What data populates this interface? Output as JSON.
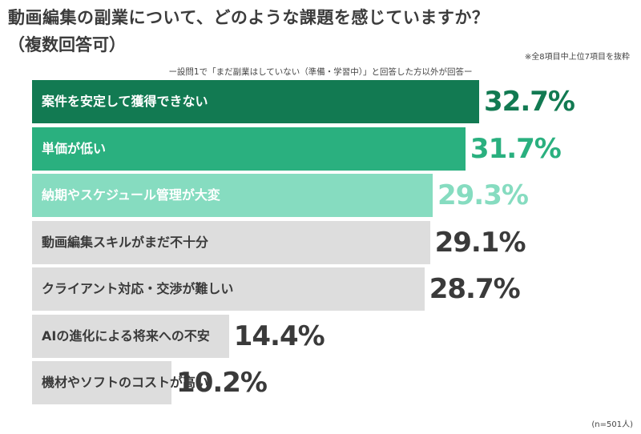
{
  "title_line1": "動画編集の副業について、どのような課題を感じていますか？",
  "title_line2": "（複数回答可）",
  "note": "※全8項目中上位7項目を抜粋",
  "subtitle": "ー設問1で「まだ副業はしていない（準備・学習中）」と回答した方以外が回答ー",
  "sample_size": "(n=501人)",
  "chart_data": {
    "type": "bar",
    "orientation": "horizontal",
    "categories": [
      "案件を安定して獲得できない",
      "単価が低い",
      "納期やスケジュール管理が大変",
      "動画編集スキルがまだ不十分",
      "クライアント対応・交渉が難しい",
      "AIの進化による将来への不安",
      "機材やソフトのコストが高い"
    ],
    "values": [
      32.7,
      31.7,
      29.3,
      29.1,
      28.7,
      14.4,
      10.2
    ],
    "value_labels": [
      "32.7%",
      "31.7%",
      "29.3%",
      "29.1%",
      "28.7%",
      "14.4%",
      "10.2%"
    ],
    "unit": "%",
    "bar_colors": [
      "#127a52",
      "#2ab07f",
      "#86dcc0",
      "#dddddd",
      "#dddddd",
      "#dddddd",
      "#dddddd"
    ],
    "label_colors": [
      "#ffffff",
      "#ffffff",
      "#ffffff",
      "#3a3a3a",
      "#3a3a3a",
      "#3a3a3a",
      "#3a3a3a"
    ],
    "value_colors": [
      "#127a52",
      "#2ab07f",
      "#86dcc0",
      "#3a3a3a",
      "#3a3a3a",
      "#3a3a3a",
      "#3a3a3a"
    ]
  }
}
